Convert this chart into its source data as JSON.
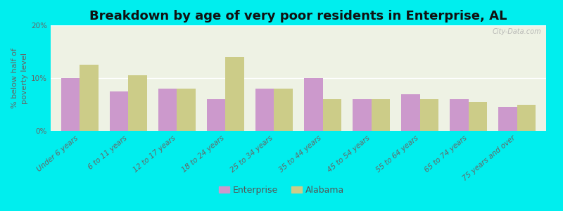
{
  "title": "Breakdown by age of very poor residents in Enterprise, AL",
  "ylabel": "% below half of\npoverty level",
  "categories": [
    "Under 6 years",
    "6 to 11 years",
    "12 to 17 years",
    "18 to 24 years",
    "25 to 34 years",
    "35 to 44 years",
    "45 to 54 years",
    "55 to 64 years",
    "65 to 74 years",
    "75 years and over"
  ],
  "enterprise_values": [
    10.0,
    7.5,
    8.0,
    6.0,
    8.0,
    10.0,
    6.0,
    7.0,
    6.0,
    4.5
  ],
  "alabama_values": [
    12.5,
    10.5,
    8.0,
    14.0,
    8.0,
    6.0,
    6.0,
    6.0,
    5.5,
    5.0
  ],
  "enterprise_color": "#cc99cc",
  "alabama_color": "#cccc88",
  "background_color": "#00eeee",
  "plot_bg_color": "#eef2e4",
  "ylim": [
    0,
    20
  ],
  "yticks": [
    0,
    10,
    20
  ],
  "ytick_labels": [
    "0%",
    "10%",
    "20%"
  ],
  "title_fontsize": 13,
  "label_fontsize": 7.5,
  "axis_label_fontsize": 8,
  "bar_width": 0.38,
  "watermark": "City-Data.com"
}
